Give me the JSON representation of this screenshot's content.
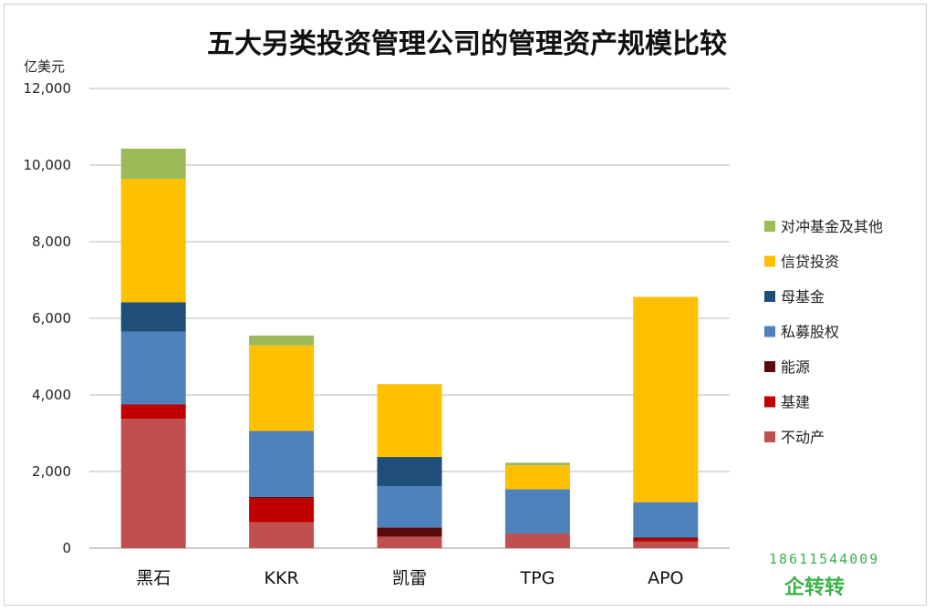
{
  "chart_data": {
    "type": "bar",
    "stacked": true,
    "title": "五大另类投资管理公司的管理资产规模比较",
    "ylabel": "亿美元",
    "xlabel": "",
    "ylim": [
      0,
      12000
    ],
    "yticks": [
      0,
      2000,
      4000,
      6000,
      8000,
      10000,
      12000
    ],
    "ytick_labels": [
      "0",
      "2,000",
      "4,000",
      "6,000",
      "8,000",
      "10,000",
      "12,000"
    ],
    "grid": true,
    "legend_position": "right",
    "categories": [
      "黑石",
      "KKR",
      "凯雷",
      "TPG",
      "APO"
    ],
    "series": [
      {
        "name": "不动产",
        "color": "#c0504d",
        "values": [
          3380,
          680,
          300,
          380,
          170
        ]
      },
      {
        "name": "基建",
        "color": "#c00000",
        "values": [
          370,
          620,
          0,
          0,
          80
        ]
      },
      {
        "name": "能源",
        "color": "#5a0a0a",
        "values": [
          0,
          40,
          240,
          0,
          30
        ]
      },
      {
        "name": "私募股权",
        "color": "#4f81bd",
        "values": [
          1900,
          1720,
          1080,
          1160,
          920
        ]
      },
      {
        "name": "母基金",
        "color": "#1f4e79",
        "values": [
          770,
          0,
          760,
          0,
          0
        ]
      },
      {
        "name": "信贷投资",
        "color": "#ffc000",
        "values": [
          3220,
          2230,
          1900,
          620,
          5360
        ]
      },
      {
        "name": "对冲基金及其他",
        "color": "#9bbb59",
        "values": [
          790,
          260,
          0,
          70,
          0
        ]
      }
    ]
  },
  "watermark": {
    "phone": "18611544009",
    "brand": "企转转"
  }
}
